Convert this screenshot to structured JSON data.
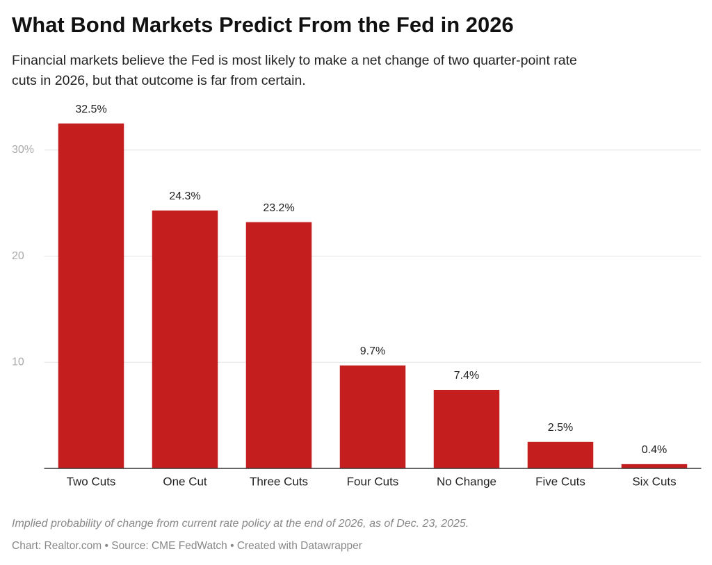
{
  "chart_data": {
    "type": "bar",
    "title": "What Bond Markets Predict From the Fed in 2026",
    "subtitle": [
      "Financial markets believe the Fed is most likely to make a net change of two quarter-point rate",
      "cuts in 2026, but that outcome is far from certain."
    ],
    "categories": [
      "Two Cuts",
      "One Cut",
      "Three Cuts",
      "Four Cuts",
      "No Change",
      "Five Cuts",
      "Six Cuts"
    ],
    "values": [
      32.5,
      24.3,
      23.2,
      9.7,
      7.4,
      2.5,
      0.4
    ],
    "value_labels": [
      "32.5%",
      "24.3%",
      "23.2%",
      "9.7%",
      "7.4%",
      "2.5%",
      "0.4%"
    ],
    "color": "#c41e1e",
    "ylim": [
      0,
      33
    ],
    "yticks": [
      10,
      20,
      {
        "value": 30,
        "label": "30%"
      }
    ],
    "grid": true,
    "notes": "Implied probability of change from current rate policy at the end of 2026, as of Dec. 23, 2025.",
    "source": "Chart: Realtor.com • Source: CME FedWatch • Created with Datawrapper"
  }
}
